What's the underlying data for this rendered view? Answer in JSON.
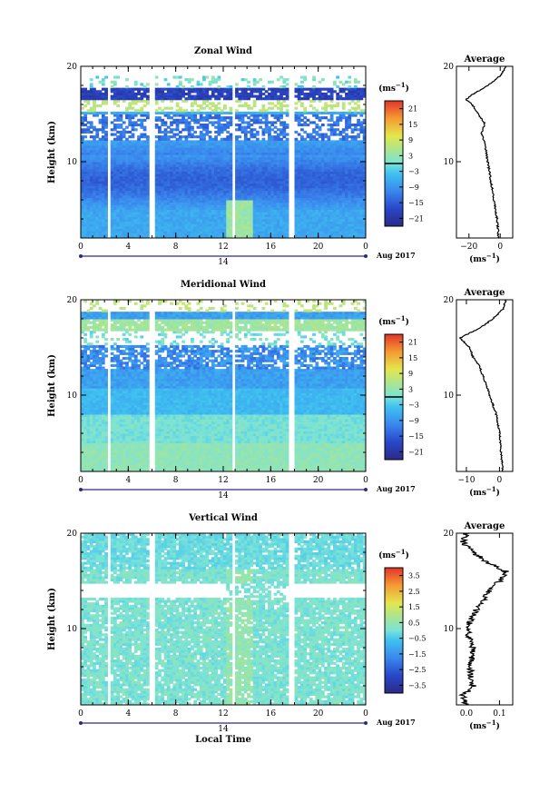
{
  "chart_data": [
    {
      "type": "heatmap",
      "title": "Zonal Wind",
      "ylabel": "Height (km)",
      "xlabel": "",
      "x_ticks": [
        "0",
        "4",
        "8",
        "12",
        "16",
        "20",
        "0"
      ],
      "y_ticks": [
        "10",
        "20"
      ],
      "xlim": [
        0,
        24
      ],
      "ylim": [
        2,
        20
      ],
      "date_marker": "14",
      "date_label": "Aug 2017",
      "colorbar": {
        "unit": "(ms",
        "unit_sup": "−1",
        "unit_close": ")",
        "ticks": [
          "21",
          "15",
          "9",
          "3",
          "−3",
          "−9",
          "−15",
          "−21"
        ],
        "range": [
          -24,
          24
        ]
      },
      "gaps_hours": [
        [
          2.2,
          2.6
        ],
        [
          5.7,
          6.2
        ],
        [
          12.8,
          13.1
        ],
        [
          17.6,
          17.9
        ]
      ],
      "profile_values": {
        "z": [
          2,
          4,
          6,
          8,
          10,
          12,
          13,
          14,
          15,
          16,
          16.5,
          17,
          18,
          19,
          20
        ],
        "u": [
          -1,
          -2,
          -4,
          -6,
          -8,
          -10,
          -12,
          -10,
          -14,
          -18,
          -22,
          -18,
          -8,
          0,
          4
        ]
      },
      "profile": {
        "title": "Average",
        "xticks": [
          "−20",
          "0"
        ],
        "xlim": [
          -28,
          8
        ],
        "unit": "(ms",
        "unit_sup": "−1",
        "unit_close": ")",
        "yticks": [
          "10",
          "20"
        ]
      }
    },
    {
      "type": "heatmap",
      "title": "Meridional Wind",
      "ylabel": "Height (km)",
      "xlabel": "",
      "x_ticks": [
        "0",
        "4",
        "8",
        "12",
        "16",
        "20",
        "0"
      ],
      "y_ticks": [
        "10",
        "20"
      ],
      "xlim": [
        0,
        24
      ],
      "ylim": [
        2,
        20
      ],
      "date_marker": "14",
      "date_label": "Aug 2017",
      "colorbar": {
        "unit": "(ms",
        "unit_sup": "−1",
        "unit_close": ")",
        "ticks": [
          "21",
          "15",
          "9",
          "3",
          "−3",
          "−9",
          "−15",
          "−21"
        ],
        "range": [
          -24,
          24
        ]
      },
      "gaps_hours": [
        [
          2.2,
          2.6
        ],
        [
          5.7,
          6.2
        ],
        [
          12.8,
          13.1
        ],
        [
          17.6,
          17.9
        ]
      ],
      "profile_values": {
        "z": [
          2,
          4,
          6,
          8,
          10,
          12,
          13,
          14,
          15,
          16,
          17,
          18,
          19,
          20
        ],
        "u": [
          1,
          0.5,
          0,
          -1,
          -3,
          -5,
          -6,
          -8,
          -9,
          -12,
          -6,
          -2,
          1,
          2
        ]
      },
      "profile": {
        "title": "Average",
        "xticks": [
          "−10",
          "0"
        ],
        "xlim": [
          -13,
          4
        ],
        "unit": "(ms",
        "unit_sup": "−1",
        "unit_close": ")",
        "yticks": [
          "10",
          "20"
        ]
      }
    },
    {
      "type": "heatmap",
      "title": "Vertical Wind",
      "ylabel": "Height (km)",
      "xlabel": "Local Time",
      "x_ticks": [
        "0",
        "4",
        "8",
        "12",
        "16",
        "20",
        "0"
      ],
      "y_ticks": [
        "10",
        "20"
      ],
      "xlim": [
        0,
        24
      ],
      "ylim": [
        2,
        20
      ],
      "date_marker": "14",
      "date_label": "Aug 2017",
      "colorbar": {
        "unit": "(ms",
        "unit_sup": "−1",
        "unit_close": ")",
        "ticks": [
          "3.5",
          "2.5",
          "1.5",
          "0.5",
          "−0.5",
          "−1.5",
          "−2.5",
          "−3.5"
        ],
        "range": [
          -4,
          4
        ]
      },
      "gaps_hours": [
        [
          2.2,
          2.6
        ],
        [
          5.7,
          6.2
        ],
        [
          12.8,
          13.1
        ],
        [
          17.6,
          17.9
        ]
      ],
      "profile_values": {
        "z": [
          2,
          3,
          4,
          6,
          8,
          10,
          12,
          14,
          15,
          16,
          17,
          18,
          19,
          20
        ],
        "u": [
          0.0,
          -0.01,
          0.02,
          0.01,
          0.02,
          0.0,
          0.03,
          0.07,
          0.1,
          0.12,
          0.06,
          0.02,
          -0.01,
          0.0
        ]
      },
      "profile": {
        "title": "Average",
        "xticks": [
          "0.0",
          "0.1"
        ],
        "xlim": [
          -0.03,
          0.14
        ],
        "unit": "(ms",
        "unit_sup": "−1",
        "unit_close": ")",
        "yticks": [
          "10",
          "20"
        ]
      }
    }
  ]
}
